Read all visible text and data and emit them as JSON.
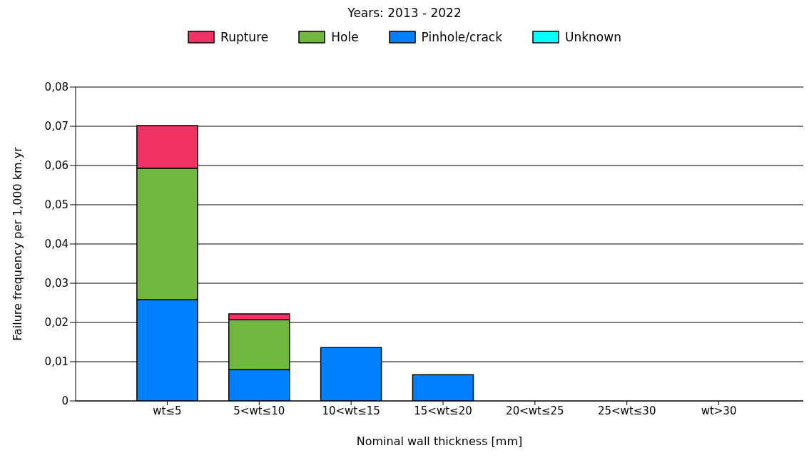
{
  "chart_data": {
    "type": "bar",
    "title": "Years: 2013 - 2022",
    "xlabel": "Nominal wall thickness [mm]",
    "ylabel": "Failure frequency per 1,000 km.yr",
    "categories": [
      "wt≤5",
      "5<wt≤10",
      "10<wt≤15",
      "15<wt≤20",
      "20<wt≤25",
      "25<wt≤30",
      "wt>30"
    ],
    "stacked": true,
    "series": [
      {
        "name": "Unknown",
        "color": "#00ffff",
        "values": [
          0,
          0,
          0,
          0,
          0,
          0,
          0
        ]
      },
      {
        "name": "Pinhole/crack",
        "color": "#0080ff",
        "values": [
          0.0258,
          0.008,
          0.0136,
          0.0067,
          0,
          0,
          0
        ]
      },
      {
        "name": "Hole",
        "color": "#70b63f",
        "values": [
          0.0335,
          0.0127,
          0,
          0,
          0,
          0,
          0
        ]
      },
      {
        "name": "Rupture",
        "color": "#f03264",
        "values": [
          0.0109,
          0.0015,
          0,
          0,
          0,
          0,
          0
        ]
      }
    ],
    "ylim": [
      0,
      0.08
    ],
    "yticks": [
      0,
      {
        "value": 0.01,
        "label": "0,01"
      },
      {
        "value": 0.02,
        "label": "0,02"
      },
      {
        "value": 0.03,
        "label": "0,03"
      },
      {
        "value": 0.04,
        "label": "0,04"
      },
      {
        "value": 0.05,
        "label": "0,05"
      },
      {
        "value": 0.06,
        "label": "0,06"
      },
      {
        "value": 0.07,
        "label": "0,07"
      },
      {
        "value": 0.08,
        "label": "0,08"
      }
    ],
    "grid": "y",
    "legend": "top"
  }
}
